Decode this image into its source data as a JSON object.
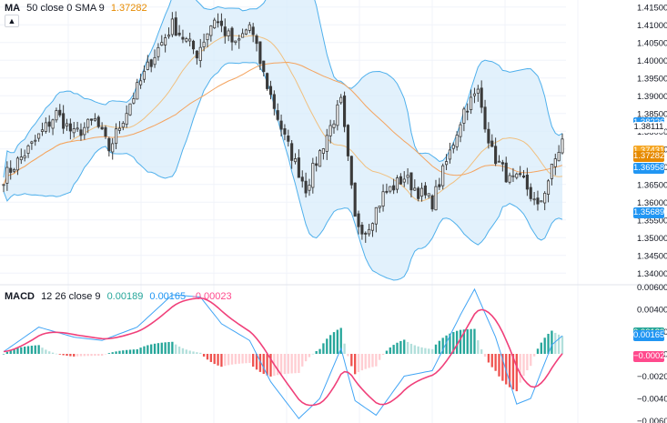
{
  "main": {
    "legend": {
      "name": "MA",
      "params": "50 close 0 SMA 9",
      "value": "1.37282"
    },
    "collapse_icon": "chevron-up-icon",
    "price_axis": {
      "min": 1.337,
      "max": 1.417,
      "ticks": [
        "1.41500",
        "1.41000",
        "1.40500",
        "1.40000",
        "1.39500",
        "1.39000",
        "1.38500",
        "1.38000",
        "1.37500",
        "1.37000",
        "1.36500",
        "1.36000",
        "1.35500",
        "1.35000",
        "1.34500",
        "1.34000"
      ]
    },
    "price_tags": [
      {
        "label": "1.38226",
        "value": 1.38226,
        "color": "#2196f3"
      },
      {
        "label": "1.38111",
        "value": 1.38111,
        "color": "#ffffff",
        "text_color": "#131722"
      },
      {
        "label": "1.37431",
        "value": 1.37431,
        "color": "#f5a623"
      },
      {
        "label": "1.37282",
        "value": 1.37282,
        "color": "#e68a00"
      },
      {
        "label": "1.36958",
        "value": 1.36958,
        "color": "#2196f3"
      },
      {
        "label": "1.35689",
        "value": 1.35689,
        "color": "#2196f3"
      }
    ]
  },
  "macd": {
    "legend": {
      "name": "MACD",
      "params": "12 26 close 9",
      "v1": "0.00189",
      "v2": "0.00165",
      "v3": "-0.00023"
    },
    "axis": {
      "min": -0.0062,
      "max": 0.0062,
      "ticks": [
        "0.00600",
        "0.00400",
        "0.00200",
        "0.00000",
        "−0.00200",
        "−0.00400",
        "−0.00600"
      ]
    },
    "tags": [
      {
        "label": "0.00189",
        "value": 0.00189,
        "color": "#26a69a"
      },
      {
        "label": "0.00165",
        "value": 0.00165,
        "color": "#2196f3"
      },
      {
        "label": "−0.00023",
        "value": -0.00023,
        "color": "#ff4a8d"
      }
    ]
  },
  "colors": {
    "up": "#26a69a",
    "down": "#ef5350",
    "candle": "#3a3a3a",
    "band_fill": "#d8ecfb",
    "band_line": "#4fb0ec",
    "ma_slow": "#f4a460",
    "ma_fast": "#f0c080",
    "macd_line": "#42a5f5",
    "signal_line": "#f0407a",
    "hist_up_strong": "#26a69a",
    "hist_up_weak": "#b2dfdb",
    "hist_down_strong": "#ef5350",
    "hist_down_weak": "#ffcdd2"
  },
  "chart_data": {
    "type": "candlestick",
    "n_bars": 160,
    "price_path": [
      [
        0,
        1.367
      ],
      [
        8,
        1.376
      ],
      [
        15,
        1.385
      ],
      [
        20,
        1.379
      ],
      [
        26,
        1.383
      ],
      [
        30,
        1.375
      ],
      [
        36,
        1.388
      ],
      [
        42,
        1.4
      ],
      [
        48,
        1.41
      ],
      [
        55,
        1.402
      ],
      [
        60,
        1.412
      ],
      [
        66,
        1.404
      ],
      [
        70,
        1.41
      ],
      [
        74,
        1.396
      ],
      [
        80,
        1.378
      ],
      [
        86,
        1.364
      ],
      [
        92,
        1.379
      ],
      [
        96,
        1.388
      ],
      [
        100,
        1.355
      ],
      [
        103,
        1.352
      ],
      [
        108,
        1.362
      ],
      [
        114,
        1.367
      ],
      [
        118,
        1.363
      ],
      [
        122,
        1.36
      ],
      [
        127,
        1.374
      ],
      [
        131,
        1.386
      ],
      [
        135,
        1.391
      ],
      [
        139,
        1.374
      ],
      [
        144,
        1.366
      ],
      [
        148,
        1.366
      ],
      [
        152,
        1.358
      ],
      [
        157,
        1.372
      ],
      [
        160,
        1.38
      ]
    ],
    "macd_path": [
      [
        0,
        0.0002
      ],
      [
        10,
        0.0024
      ],
      [
        20,
        0.0015
      ],
      [
        28,
        0.0012
      ],
      [
        38,
        0.0024
      ],
      [
        48,
        0.0053
      ],
      [
        56,
        0.0051
      ],
      [
        62,
        0.0027
      ],
      [
        70,
        0.0012
      ],
      [
        76,
        -0.0025
      ],
      [
        84,
        -0.0058
      ],
      [
        90,
        -0.004
      ],
      [
        96,
        0.0005
      ],
      [
        100,
        -0.0042
      ],
      [
        106,
        -0.0055
      ],
      [
        114,
        -0.002
      ],
      [
        122,
        -0.0015
      ],
      [
        130,
        0.0035
      ],
      [
        134,
        0.0058
      ],
      [
        140,
        0.0015
      ],
      [
        146,
        -0.0045
      ],
      [
        150,
        -0.004
      ],
      [
        156,
        0.0008
      ],
      [
        160,
        0.0019
      ]
    ]
  }
}
